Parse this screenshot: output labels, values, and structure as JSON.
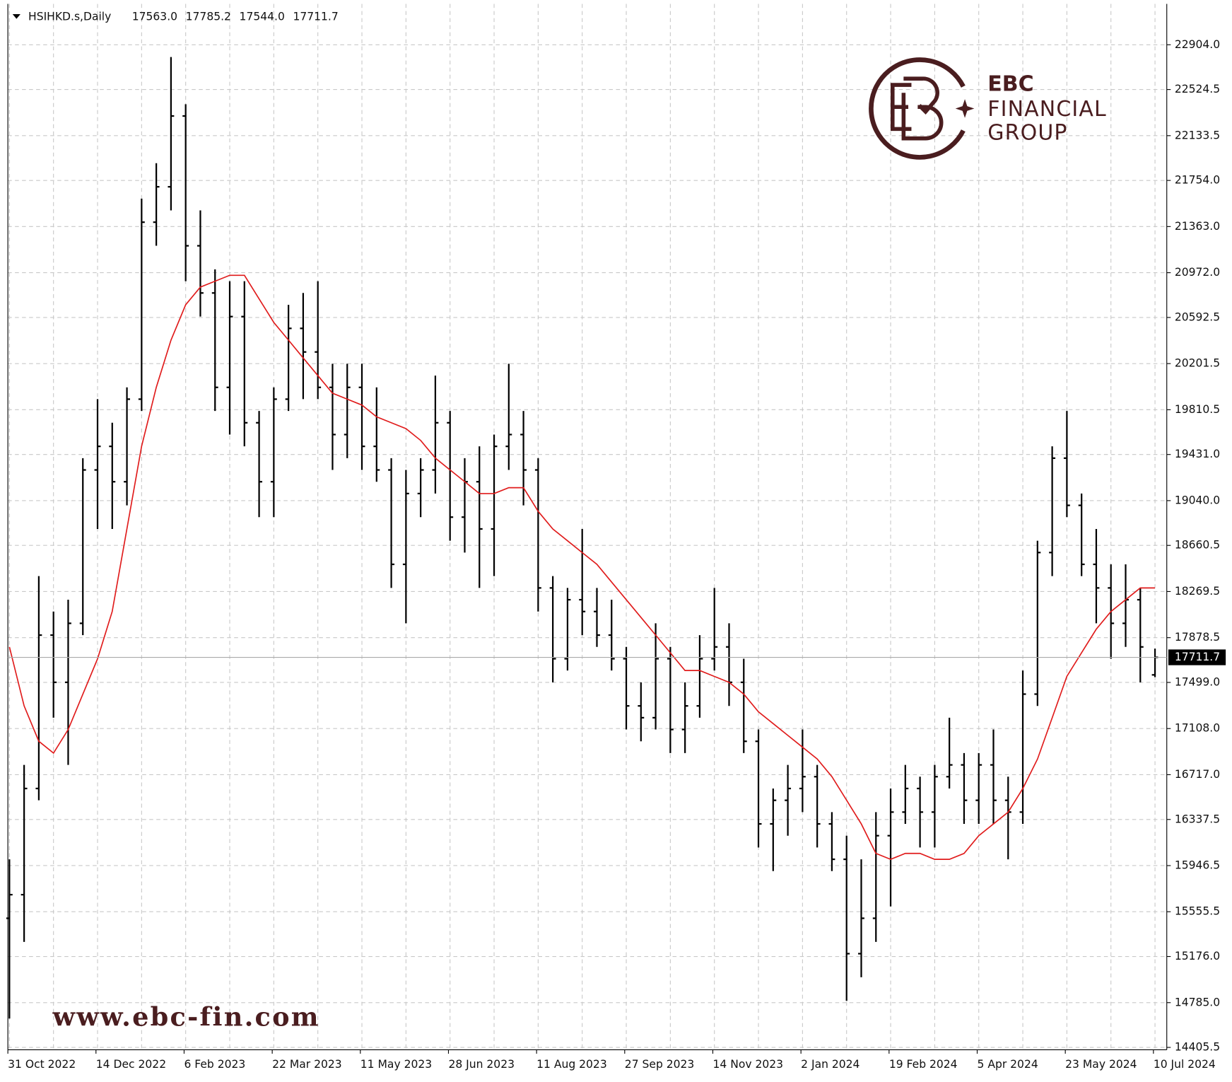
{
  "chart_data": {
    "type": "ohlc",
    "header": {
      "symbol": "HSIHKD.s,Daily",
      "values": [
        17563,
        17785.2,
        17544,
        17711.7
      ],
      "value_labels": [
        "17563.0",
        "17785.2",
        "17544.0",
        "17711.7"
      ]
    },
    "current_price": {
      "value": 17711.7,
      "label": "17711.7"
    },
    "logo": {
      "line1": "EBC",
      "line2": "FINANCIAL",
      "line3": "GROUP"
    },
    "watermark": "www.ebc-fin.com",
    "categories": [
      "31 Oct 2022",
      null,
      null,
      null,
      null,
      null,
      "14 Dec 2022",
      null,
      null,
      null,
      null,
      null,
      "6 Feb 2023",
      null,
      null,
      null,
      null,
      null,
      "22 Mar 2023",
      null,
      null,
      null,
      null,
      null,
      "11 May 2023",
      null,
      null,
      null,
      null,
      null,
      "28 Jun 2023",
      null,
      null,
      null,
      null,
      null,
      "11 Aug 2023",
      null,
      null,
      null,
      null,
      null,
      "27 Sep 2023",
      null,
      null,
      null,
      null,
      null,
      "14 Nov 2023",
      null,
      null,
      null,
      null,
      null,
      "2 Jan 2024",
      null,
      null,
      null,
      null,
      null,
      "19 Feb 2024",
      null,
      null,
      null,
      null,
      null,
      "5 Apr 2024",
      null,
      null,
      null,
      null,
      null,
      "23 May 2024",
      null,
      null,
      null,
      null,
      null,
      "10 Jul 2024"
    ],
    "color": "#000000",
    "open": [
      15500,
      15700,
      16600,
      17900,
      17500,
      18000,
      19300,
      19500,
      19200,
      19900,
      21400,
      21700,
      22300,
      21200,
      20800,
      20000,
      20600,
      19700,
      19200,
      19900,
      20500,
      20300,
      20000,
      19600,
      20000,
      19500,
      19300,
      18500,
      19100,
      19300,
      19700,
      18900,
      19200,
      18800,
      19500,
      19600,
      19300,
      18300,
      17700,
      18200,
      18100,
      17900,
      17700,
      17300,
      17200,
      17700,
      17100,
      17300,
      17700,
      17800,
      17500,
      17000,
      16300,
      16500,
      16600,
      16700,
      16300,
      16000,
      15200,
      15500,
      16200,
      16400,
      16600,
      16400,
      16700,
      16800,
      16500,
      16800,
      16500,
      16400,
      17400,
      18600,
      19400,
      19000,
      18500,
      18300,
      18000,
      18200,
      17563
    ],
    "high": [
      16000,
      16800,
      18400,
      18100,
      18200,
      19400,
      19900,
      19700,
      20000,
      21600,
      21900,
      22800,
      22400,
      21500,
      21000,
      20900,
      20900,
      19800,
      20000,
      20700,
      20800,
      20900,
      20200,
      20200,
      20200,
      20000,
      19400,
      19300,
      19400,
      20100,
      19800,
      19400,
      19500,
      19600,
      20200,
      19800,
      19400,
      18400,
      18300,
      18800,
      18300,
      18200,
      17800,
      17500,
      18000,
      17800,
      17500,
      17900,
      18300,
      18000,
      17700,
      17100,
      16600,
      16800,
      17100,
      16800,
      16400,
      16200,
      16000,
      16400,
      16600,
      16800,
      16700,
      16800,
      17200,
      16900,
      16900,
      17100,
      16700,
      17600,
      18700,
      19500,
      19800,
      19100,
      18800,
      18500,
      18500,
      18300,
      17785.2
    ],
    "low": [
      14650,
      15300,
      16500,
      17200,
      16800,
      17900,
      18800,
      18800,
      19000,
      19800,
      21200,
      21500,
      20900,
      20600,
      19800,
      19600,
      19500,
      18900,
      18900,
      19800,
      19900,
      19900,
      19300,
      19400,
      19300,
      19200,
      18300,
      18000,
      18900,
      19100,
      18700,
      18600,
      18300,
      18400,
      19300,
      19000,
      18100,
      17500,
      17600,
      17900,
      17800,
      17600,
      17100,
      17000,
      17100,
      16900,
      16900,
      17200,
      17600,
      17300,
      16900,
      16100,
      15900,
      16200,
      16400,
      16100,
      15900,
      14800,
      15000,
      15300,
      15600,
      16300,
      16100,
      16100,
      16600,
      16300,
      16300,
      16300,
      16000,
      16300,
      17300,
      18400,
      18900,
      18400,
      18000,
      17700,
      17800,
      17500,
      17544
    ],
    "close": [
      15700,
      16600,
      17900,
      17500,
      18000,
      19300,
      19500,
      19200,
      19900,
      21400,
      21700,
      22300,
      21200,
      20800,
      20000,
      20600,
      19700,
      19200,
      19900,
      20500,
      20300,
      20000,
      19600,
      20000,
      19500,
      19300,
      18500,
      19100,
      19300,
      19700,
      18900,
      19200,
      18800,
      19500,
      19600,
      19300,
      18300,
      17700,
      18200,
      18100,
      17900,
      17700,
      17300,
      17200,
      17700,
      17100,
      17300,
      17700,
      17800,
      17500,
      17000,
      16300,
      16500,
      16600,
      16700,
      16300,
      16000,
      15200,
      15500,
      16200,
      16400,
      16600,
      16400,
      16700,
      16800,
      16500,
      16800,
      16500,
      16400,
      17400,
      18600,
      19400,
      19000,
      18500,
      18300,
      18000,
      18200,
      17800,
      17711.7
    ],
    "ma": {
      "color": "#e01b1b",
      "values": [
        17800,
        17300,
        17000,
        16900,
        17100,
        17400,
        17700,
        18100,
        18800,
        19500,
        20000,
        20400,
        20700,
        20850,
        20900,
        20950,
        20950,
        20750,
        20550,
        20400,
        20250,
        20100,
        19950,
        19900,
        19850,
        19750,
        19700,
        19650,
        19550,
        19400,
        19300,
        19200,
        19100,
        19100,
        19150,
        19150,
        18950,
        18800,
        18700,
        18600,
        18500,
        18350,
        18200,
        18050,
        17900,
        17750,
        17600,
        17600,
        17550,
        17500,
        17400,
        17250,
        17150,
        17050,
        16950,
        16850,
        16700,
        16500,
        16300,
        16050,
        16000,
        16050,
        16050,
        16000,
        16000,
        16050,
        16200,
        16300,
        16400,
        16600,
        16850,
        17200,
        17550,
        17750,
        17950,
        18100,
        18200,
        18300,
        18300
      ]
    },
    "ylim": [
      14405.5,
      23250
    ],
    "yticks": [
      14405.5,
      {
        "value": 14785,
        "label": "14785.0"
      },
      {
        "value": 15176,
        "label": "15176.0"
      },
      15555.5,
      15946.5,
      16337.5,
      {
        "value": 16717,
        "label": "16717.0"
      },
      {
        "value": 17108,
        "label": "17108.0"
      },
      {
        "value": 17499,
        "label": "17499.0"
      },
      17878.5,
      18269.5,
      18660.5,
      {
        "value": 19040,
        "label": "19040.0"
      },
      {
        "value": 19431,
        "label": "19431.0"
      },
      19810.5,
      20201.5,
      20592.5,
      {
        "value": 20972,
        "label": "20972.0"
      },
      {
        "value": 21363,
        "label": "21363.0"
      },
      {
        "value": 21754,
        "label": "21754.0"
      },
      22133.5,
      22524.5,
      {
        "value": 22904,
        "label": "22904.0"
      }
    ],
    "grid": true
  }
}
